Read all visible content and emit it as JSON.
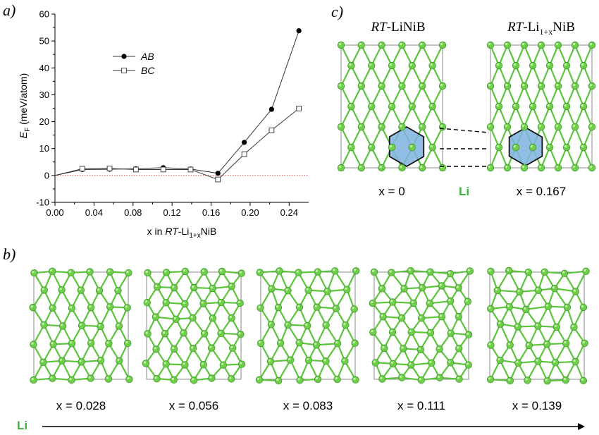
{
  "panels": {
    "a": "a)",
    "b": "b)",
    "c": "c)"
  },
  "chart_data": {
    "type": "line",
    "xlabel_pre": "x in ",
    "xlabel_rt": "RT",
    "xlabel_li": "-Li",
    "xlabel_sub": "1+x",
    "xlabel_post": "NiB",
    "ylabel_pre": "E",
    "ylabel_sub": "F",
    "ylabel_post": " (meV/atom)",
    "xlim": [
      0.0,
      0.26
    ],
    "ylim": [
      -10,
      60
    ],
    "xticks": [
      "0.00",
      "0.04",
      "0.08",
      "0.12",
      "0.16",
      "0.20",
      "0.24"
    ],
    "xtick_values": [
      0.0,
      0.04,
      0.08,
      0.12,
      0.16,
      0.2,
      0.24
    ],
    "yticks": [
      "-10",
      "0",
      "10",
      "20",
      "30",
      "40",
      "50",
      "60"
    ],
    "ytick_values": [
      -10,
      0,
      10,
      20,
      30,
      40,
      50,
      60
    ],
    "reference_line": {
      "y": 0,
      "color": "#e04040",
      "style": "dotted"
    },
    "series": [
      {
        "name": "AB",
        "marker": "filled-circle",
        "x": [
          0.0,
          0.028,
          0.056,
          0.083,
          0.111,
          0.139,
          0.167,
          0.194,
          0.222,
          0.25
        ],
        "y": [
          0.0,
          2.2,
          2.3,
          2.5,
          2.9,
          2.4,
          0.8,
          12.3,
          24.6,
          53.8
        ]
      },
      {
        "name": "BC",
        "marker": "open-square",
        "x": [
          0.0,
          0.028,
          0.056,
          0.083,
          0.111,
          0.139,
          0.167,
          0.194,
          0.222,
          0.25
        ],
        "y": [
          0.0,
          2.5,
          2.6,
          2.2,
          2.2,
          2.2,
          -1.5,
          7.9,
          16.8,
          24.9
        ]
      }
    ]
  },
  "panel_c": {
    "left_title_italic": "RT",
    "left_title_rest": "-LiNiB",
    "right_title_italic": "RT",
    "right_title_li": "-Li",
    "right_title_sub": "1+x",
    "right_title_rest": "NiB",
    "left_caption": "x = 0",
    "center_label": "Li",
    "right_caption": "x = 0.167"
  },
  "panel_b": {
    "captions": [
      "x = 0.028",
      "x = 0.056",
      "x = 0.083",
      "x = 0.111",
      "x = 0.139"
    ],
    "arrow_label": "Li"
  },
  "colors": {
    "atom": "#6fcf4a",
    "bond": "#5cc43c",
    "hexagon": "#7fb3e0",
    "cell": "#888888"
  }
}
